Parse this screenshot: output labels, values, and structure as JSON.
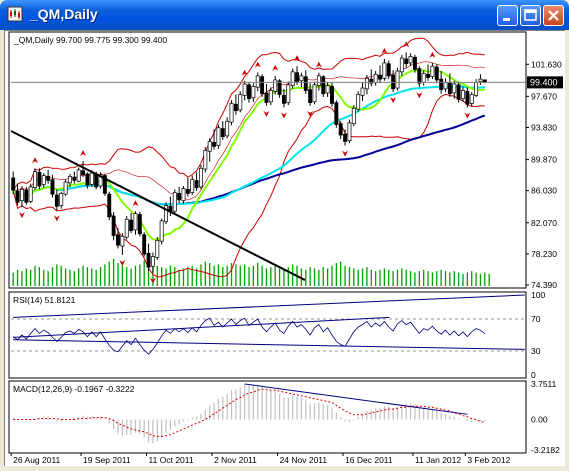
{
  "window": {
    "title": "_QM,Daily",
    "minimize_icon": "minimize-icon",
    "maximize_icon": "maximize-icon",
    "close_icon": "close-icon",
    "app_icon": "chart-icon"
  },
  "colors": {
    "bull": "#ffffff",
    "bear": "#000000",
    "candle_edge": "#000000",
    "bollinger": "#cc0000",
    "ma_fast": "#80ff00",
    "ma_mid": "#00e5ee",
    "ma_slow": "#000099",
    "volume": "#00a000",
    "fractal": "#cc0000",
    "trendline": "#000000",
    "rsi_line": "#000080",
    "macd_hist": "#c0c0c0",
    "macd_signal": "#dd0000",
    "price_tag_bg": "#000000"
  },
  "chart_data": [
    {
      "type": "candlestick",
      "title": "_QM,Daily",
      "info_label": "_QM,Daily  99.700 99.775 99.300 99.400",
      "current_price_label": "99.400",
      "current_price": 99.4,
      "ylim": [
        74.39,
        105.0
      ],
      "y_ticks": [
        "101.630",
        "97.670",
        "93.830",
        "89.870",
        "86.030",
        "82.070",
        "78.230",
        "74.390"
      ],
      "x_ticks": [
        "26 Aug 2011",
        "19 Sep 2011",
        "11 Oct 2011",
        "2 Nov 2011",
        "24 Nov 2011",
        "16 Dec 2011",
        "11 Jan 2012",
        "3 Feb 2012"
      ],
      "candles_ohlc": [
        [
          87.6,
          88.4,
          85.6,
          86.1
        ],
        [
          86.0,
          86.9,
          84.2,
          84.6
        ],
        [
          84.8,
          86.6,
          84.0,
          86.2
        ],
        [
          86.1,
          86.5,
          84.3,
          84.6
        ],
        [
          84.7,
          86.9,
          84.5,
          86.5
        ],
        [
          86.4,
          88.8,
          86.1,
          88.4
        ],
        [
          88.3,
          88.8,
          86.2,
          86.6
        ],
        [
          86.8,
          88.2,
          86.4,
          87.9
        ],
        [
          87.8,
          88.6,
          86.9,
          87.3
        ],
        [
          87.4,
          88.0,
          85.2,
          85.6
        ],
        [
          85.5,
          86.2,
          83.6,
          84.1
        ],
        [
          84.2,
          85.9,
          83.8,
          85.7
        ],
        [
          85.6,
          87.4,
          85.4,
          87.1
        ],
        [
          87.0,
          88.1,
          86.5,
          87.8
        ],
        [
          87.7,
          88.4,
          86.9,
          87.3
        ],
        [
          87.2,
          88.9,
          87.1,
          88.6
        ],
        [
          88.5,
          89.7,
          87.7,
          88.0
        ],
        [
          88.1,
          88.3,
          86.3,
          86.7
        ],
        [
          86.8,
          88.6,
          86.5,
          88.2
        ],
        [
          88.1,
          88.4,
          86.2,
          86.5
        ],
        [
          86.6,
          88.3,
          86.3,
          88.0
        ],
        [
          87.9,
          88.1,
          85.4,
          85.7
        ],
        [
          85.6,
          85.9,
          82.4,
          82.8
        ],
        [
          82.9,
          83.4,
          79.9,
          80.5
        ],
        [
          80.6,
          81.4,
          78.9,
          79.3
        ],
        [
          79.2,
          80.8,
          78.1,
          80.4
        ],
        [
          80.3,
          82.9,
          80.0,
          82.5
        ],
        [
          82.4,
          83.3,
          80.8,
          81.1
        ],
        [
          81.2,
          83.5,
          80.6,
          83.2
        ],
        [
          83.1,
          83.4,
          80.4,
          80.7
        ],
        [
          80.6,
          80.9,
          77.9,
          78.2
        ],
        [
          78.3,
          79.5,
          76.1,
          76.6
        ],
        [
          76.7,
          78.4,
          75.9,
          77.9
        ],
        [
          77.8,
          80.3,
          77.5,
          79.9
        ],
        [
          79.8,
          82.6,
          79.4,
          82.3
        ],
        [
          82.2,
          84.6,
          81.9,
          84.2
        ],
        [
          84.1,
          85.3,
          82.9,
          83.4
        ],
        [
          83.5,
          86.2,
          83.2,
          85.8
        ],
        [
          85.7,
          86.5,
          84.5,
          84.9
        ],
        [
          84.8,
          86.6,
          84.4,
          86.3
        ],
        [
          86.2,
          87.6,
          85.3,
          85.7
        ],
        [
          85.8,
          87.9,
          85.5,
          87.4
        ],
        [
          87.3,
          88.3,
          86.0,
          86.4
        ],
        [
          86.5,
          89.2,
          86.2,
          88.8
        ],
        [
          88.7,
          91.4,
          88.3,
          91.0
        ],
        [
          90.9,
          92.5,
          89.6,
          92.1
        ],
        [
          92.0,
          93.6,
          91.1,
          91.5
        ],
        [
          91.6,
          94.2,
          91.2,
          93.8
        ],
        [
          93.7,
          94.6,
          92.3,
          92.7
        ],
        [
          92.8,
          95.1,
          92.5,
          94.6
        ],
        [
          94.5,
          97.2,
          94.1,
          96.8
        ],
        [
          96.7,
          97.9,
          95.4,
          95.9
        ],
        [
          96.0,
          98.3,
          95.7,
          97.9
        ],
        [
          97.8,
          99.6,
          97.2,
          99.2
        ],
        [
          99.1,
          99.4,
          96.9,
          97.4
        ],
        [
          97.5,
          99.3,
          97.0,
          98.9
        ],
        [
          98.8,
          100.6,
          98.3,
          100.2
        ],
        [
          100.1,
          100.4,
          97.6,
          98.0
        ],
        [
          98.1,
          99.2,
          96.5,
          96.9
        ],
        [
          97.0,
          98.8,
          96.6,
          98.4
        ],
        [
          98.3,
          100.2,
          97.9,
          99.7
        ],
        [
          99.6,
          99.8,
          97.5,
          97.9
        ],
        [
          97.8,
          98.6,
          96.3,
          96.8
        ],
        [
          96.9,
          99.5,
          96.6,
          99.1
        ],
        [
          99.0,
          101.1,
          98.6,
          100.7
        ],
        [
          100.6,
          101.4,
          99.1,
          99.5
        ],
        [
          99.6,
          100.6,
          98.8,
          100.2
        ],
        [
          100.1,
          100.9,
          98.0,
          98.4
        ],
        [
          98.5,
          99.3,
          96.5,
          96.9
        ],
        [
          97.0,
          99.5,
          96.7,
          99.1
        ],
        [
          99.0,
          100.6,
          98.4,
          100.2
        ],
        [
          100.1,
          100.3,
          97.6,
          98.0
        ],
        [
          98.1,
          99.4,
          97.6,
          99.0
        ],
        [
          98.9,
          99.4,
          96.4,
          96.8
        ],
        [
          96.9,
          97.2,
          93.8,
          94.2
        ],
        [
          94.3,
          94.6,
          92.4,
          92.9
        ],
        [
          93.0,
          93.6,
          91.6,
          92.1
        ],
        [
          92.2,
          94.8,
          91.9,
          94.4
        ],
        [
          94.3,
          96.6,
          94.0,
          96.2
        ],
        [
          96.1,
          98.3,
          95.8,
          97.9
        ],
        [
          97.8,
          99.4,
          97.1,
          98.7
        ],
        [
          98.6,
          100.3,
          97.9,
          99.9
        ],
        [
          99.8,
          101.0,
          98.9,
          99.3
        ],
        [
          99.4,
          100.8,
          99.0,
          100.4
        ],
        [
          100.3,
          101.5,
          99.3,
          99.8
        ],
        [
          99.9,
          102.3,
          99.6,
          101.8
        ],
        [
          101.7,
          102.1,
          99.8,
          100.2
        ],
        [
          100.3,
          100.9,
          98.2,
          98.6
        ],
        [
          98.7,
          101.2,
          98.4,
          100.8
        ],
        [
          100.7,
          102.8,
          100.2,
          102.4
        ],
        [
          102.3,
          103.1,
          101.2,
          101.7
        ],
        [
          101.8,
          103.0,
          101.4,
          102.6
        ],
        [
          102.5,
          102.8,
          100.6,
          101.0
        ],
        [
          101.1,
          101.4,
          98.8,
          99.3
        ],
        [
          99.4,
          100.9,
          99.0,
          100.5
        ],
        [
          100.4,
          101.6,
          99.6,
          100.0
        ],
        [
          100.1,
          101.8,
          99.8,
          101.4
        ],
        [
          101.3,
          101.6,
          99.3,
          99.7
        ],
        [
          99.8,
          100.8,
          98.0,
          98.5
        ],
        [
          98.6,
          99.9,
          98.2,
          99.4
        ],
        [
          99.3,
          100.5,
          97.6,
          98.0
        ],
        [
          98.1,
          99.6,
          97.4,
          99.2
        ],
        [
          99.1,
          99.5,
          96.9,
          97.3
        ],
        [
          97.4,
          98.9,
          97.0,
          98.4
        ],
        [
          98.3,
          98.8,
          96.3,
          96.7
        ],
        [
          96.8,
          98.2,
          96.4,
          97.9
        ],
        [
          97.8,
          99.8,
          97.6,
          99.4
        ],
        [
          99.5,
          100.4,
          99.1,
          99.8
        ],
        [
          99.7,
          99.775,
          99.3,
          99.4
        ]
      ],
      "volume": [
        10,
        12,
        11,
        13,
        12,
        15,
        14,
        12,
        11,
        14,
        16,
        15,
        13,
        12,
        11,
        13,
        15,
        14,
        13,
        12,
        14,
        16,
        18,
        20,
        17,
        15,
        14,
        13,
        15,
        16,
        19,
        21,
        17,
        15,
        14,
        13,
        15,
        14,
        12,
        13,
        14,
        15,
        13,
        16,
        18,
        17,
        15,
        16,
        14,
        15,
        17,
        16,
        15,
        16,
        14,
        15,
        17,
        15,
        13,
        14,
        15,
        13,
        12,
        14,
        16,
        15,
        13,
        12,
        14,
        13,
        12,
        14,
        13,
        15,
        17,
        18,
        15,
        14,
        13,
        12,
        13,
        14,
        12,
        11,
        12,
        13,
        12,
        11,
        12,
        13,
        12,
        11,
        10,
        11,
        12,
        11,
        10,
        11,
        12,
        11,
        10,
        11,
        10,
        9,
        10,
        11,
        10,
        9,
        10,
        9
      ],
      "series": [
        "Bollinger Bands",
        "Moving Averages",
        "Fractals"
      ],
      "trendline_points": [
        [
          "26 Aug 2011",
          93.4
        ],
        [
          "24 Nov 2011",
          75.0
        ]
      ]
    },
    {
      "type": "line",
      "title": "RSI(14) 51.8121",
      "ylim": [
        0,
        100
      ],
      "y_ticks": [
        "100",
        "70",
        "30",
        "0"
      ],
      "levels": [
        70,
        30
      ],
      "values": [
        48,
        44,
        50,
        45,
        52,
        58,
        52,
        56,
        53,
        47,
        42,
        47,
        53,
        55,
        52,
        57,
        54,
        48,
        54,
        48,
        54,
        45,
        37,
        31,
        29,
        36,
        43,
        38,
        46,
        38,
        31,
        26,
        32,
        40,
        49,
        56,
        52,
        58,
        54,
        58,
        53,
        59,
        54,
        62,
        68,
        71,
        62,
        66,
        60,
        65,
        70,
        63,
        68,
        71,
        62,
        66,
        70,
        60,
        54,
        60,
        65,
        56,
        52,
        61,
        67,
        60,
        63,
        57,
        50,
        59,
        63,
        54,
        59,
        50,
        42,
        38,
        36,
        45,
        54,
        60,
        63,
        67,
        60,
        65,
        61,
        67,
        60,
        55,
        64,
        68,
        63,
        66,
        59,
        52,
        58,
        56,
        61,
        55,
        51,
        56,
        50,
        55,
        49,
        54,
        48,
        54,
        58,
        56,
        51.8121
      ],
      "trendlines": [
        [
          [
            0,
            72
          ],
          [
            108,
            100
          ]
        ],
        [
          [
            0,
            44
          ],
          [
            108,
            32
          ]
        ],
        [
          [
            0,
            47
          ],
          [
            77,
            72
          ]
        ]
      ]
    },
    {
      "type": "bar",
      "title": "MACD(12,26,9) -0.1967 -0.3222",
      "ylim": [
        -3.2182,
        3.7511
      ],
      "y_ticks": [
        "3.7511",
        "0.00",
        "-3.2182"
      ],
      "histogram": [
        0.2,
        0.1,
        0.1,
        0,
        -0.1,
        0.1,
        0.2,
        0.3,
        0.3,
        0.1,
        -0.2,
        -0.3,
        -0.1,
        0.1,
        0.2,
        0.3,
        0.4,
        0.3,
        0.3,
        0.2,
        0.3,
        0.1,
        -0.4,
        -1.0,
        -1.5,
        -1.7,
        -1.6,
        -1.6,
        -1.4,
        -1.5,
        -1.9,
        -2.4,
        -2.5,
        -2.3,
        -1.9,
        -1.4,
        -1.1,
        -0.7,
        -0.5,
        -0.2,
        -0.1,
        0.2,
        0.3,
        0.6,
        1.0,
        1.5,
        1.8,
        2.2,
        2.4,
        2.7,
        3.1,
        3.2,
        3.4,
        3.7,
        3.6,
        3.6,
        3.7,
        3.5,
        3.1,
        3.0,
        3.0,
        2.7,
        2.3,
        2.3,
        2.5,
        2.4,
        2.3,
        2.1,
        1.7,
        1.7,
        1.8,
        1.6,
        1.5,
        1.2,
        0.7,
        0.2,
        -0.2,
        -0.3,
        -0.1,
        0.3,
        0.6,
        0.9,
        1.0,
        1.2,
        1.2,
        1.4,
        1.4,
        1.2,
        1.3,
        1.6,
        1.6,
        1.7,
        1.6,
        1.3,
        1.2,
        1.1,
        1.1,
        0.9,
        0.7,
        0.6,
        0.4,
        0.3,
        0.1,
        0.0,
        -0.2,
        -0.3,
        -0.2,
        -0.2,
        -0.1967
      ],
      "signal": [
        0.0,
        0.0,
        0.0,
        0.0,
        0.0,
        0.0,
        0.1,
        0.1,
        0.1,
        0.1,
        0.1,
        0.0,
        0.0,
        0.0,
        0.0,
        0.1,
        0.1,
        0.1,
        0.2,
        0.2,
        0.2,
        0.2,
        0.1,
        -0.1,
        -0.4,
        -0.6,
        -0.8,
        -1.0,
        -1.1,
        -1.2,
        -1.3,
        -1.5,
        -1.7,
        -1.8,
        -1.8,
        -1.7,
        -1.6,
        -1.4,
        -1.2,
        -1.0,
        -0.8,
        -0.6,
        -0.4,
        -0.2,
        0.0,
        0.3,
        0.6,
        0.9,
        1.2,
        1.5,
        1.8,
        2.1,
        2.3,
        2.6,
        2.8,
        2.9,
        3.1,
        3.2,
        3.2,
        3.1,
        3.1,
        3.0,
        2.9,
        2.8,
        2.7,
        2.6,
        2.5,
        2.4,
        2.3,
        2.2,
        2.1,
        2.0,
        1.9,
        1.8,
        1.5,
        1.2,
        0.9,
        0.7,
        0.5,
        0.5,
        0.5,
        0.6,
        0.7,
        0.8,
        0.9,
        1.0,
        1.1,
        1.1,
        1.2,
        1.3,
        1.3,
        1.4,
        1.4,
        1.4,
        1.4,
        1.3,
        1.3,
        1.2,
        1.1,
        1.0,
        0.9,
        0.7,
        0.6,
        0.4,
        0.3,
        0.1,
        0.0,
        -0.2,
        -0.3222
      ],
      "trendline": [
        [
          53,
          3.75
        ],
        [
          104,
          0.55
        ]
      ]
    }
  ]
}
